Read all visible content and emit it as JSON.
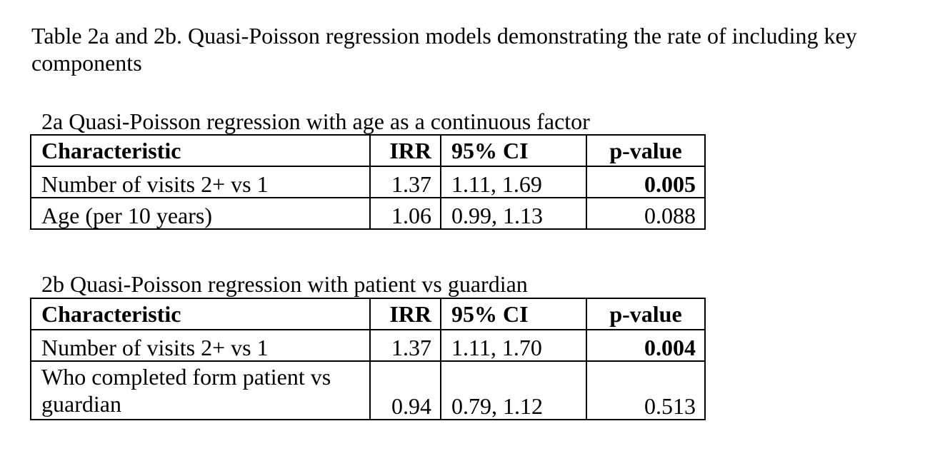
{
  "document": {
    "title": "Table 2a and 2b. Quasi-Poisson regression models demonstrating the rate of including key components"
  },
  "table_2a": {
    "caption": "2a Quasi-Poisson regression with age as a continuous factor",
    "headers": [
      "Characteristic",
      "IRR",
      "95% CI",
      "p-value"
    ],
    "rows": [
      {
        "characteristic": "Number of visits 2+ vs 1",
        "irr": "1.37",
        "ci": "1.11, 1.69",
        "p_value": "0.005"
      },
      {
        "characteristic": "Age (per 10 years)",
        "irr": "1.06",
        "ci": "0.99, 1.13",
        "p_value": "0.088"
      }
    ]
  },
  "table_2b": {
    "caption": "2b Quasi-Poisson regression with patient vs guardian",
    "headers": [
      "Characteristic",
      "IRR",
      "95% CI",
      "p-value"
    ],
    "rows": [
      {
        "characteristic": "Number of visits 2+ vs 1",
        "irr": "1.37",
        "ci": "1.11, 1.70",
        "p_value": "0.004"
      },
      {
        "characteristic": "Who completed form patient vs guardian",
        "irr": "0.94",
        "ci": "0.79, 1.12",
        "p_value": "0.513"
      }
    ]
  }
}
